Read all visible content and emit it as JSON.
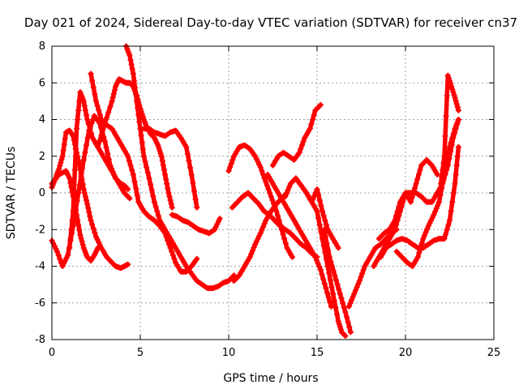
{
  "chart_data": {
    "type": "scatter",
    "title": "Day 021 of 2024, Sidereal Day-to-day VTEC variation (SDTVAR) for receiver cn37",
    "xlabel": "GPS time / hours",
    "ylabel": "SDTVAR / TECUs",
    "xlim": [
      0,
      25
    ],
    "ylim": [
      -8,
      8
    ],
    "xticks": [
      0,
      5,
      10,
      15,
      20,
      25
    ],
    "yticks": [
      -8,
      -6,
      -4,
      -2,
      0,
      2,
      4,
      6,
      8
    ],
    "grid": true,
    "marker": "+",
    "color": "#ff0000",
    "series": [
      {
        "x": [
          0,
          0.2,
          0.4,
          0.6,
          0.8,
          1.0,
          1.2,
          1.4,
          1.6,
          1.8,
          2.0,
          2.2,
          2.5,
          2.8,
          3.1,
          3.4,
          3.6,
          3.9,
          4.1,
          4.3
        ],
        "y": [
          0.3,
          0.8,
          1.3,
          2.0,
          3.3,
          3.4,
          3.1,
          2.2,
          1.3,
          0.2,
          -0.6,
          -1.5,
          -2.4,
          -3.0,
          -3.5,
          -3.8,
          -4.0,
          -4.1,
          -4.0,
          -3.9
        ]
      },
      {
        "x": [
          0,
          0.3,
          0.6,
          0.9,
          1.2,
          1.5,
          1.8,
          2.1,
          2.4,
          2.7,
          3.0,
          3.3,
          3.6,
          3.9,
          4.1,
          4.3
        ],
        "y": [
          -2.6,
          -3.2,
          -4.0,
          -3.4,
          -1.8,
          0.0,
          1.8,
          3.4,
          4.2,
          3.8,
          2.8,
          1.5,
          0.8,
          0.5,
          0.4,
          0.2
        ]
      },
      {
        "x": [
          0,
          0.4,
          0.8,
          1.0,
          1.2,
          1.4,
          1.6,
          1.8,
          2.0,
          2.2,
          2.4,
          2.6
        ],
        "y": [
          0.5,
          1.0,
          1.2,
          0.8,
          -0.2,
          -1.2,
          -2.3,
          -3.0,
          -3.5,
          -3.7,
          -3.4,
          -3.0
        ]
      },
      {
        "x": [
          1.0,
          1.2,
          1.4,
          1.6,
          1.8,
          2.0,
          2.3,
          2.6,
          2.9,
          3.2,
          3.5,
          3.8,
          4.1,
          4.4
        ],
        "y": [
          -3.0,
          -1.0,
          3.5,
          5.5,
          5.0,
          4.0,
          3.0,
          2.5,
          2.0,
          1.5,
          1.0,
          0.5,
          0.0,
          -0.3
        ]
      },
      {
        "x": [
          2.2,
          2.5,
          2.8,
          3.1,
          3.4,
          3.7,
          4.0,
          4.3,
          4.6,
          4.9,
          5.2,
          5.5,
          5.8,
          6.1,
          6.4,
          6.7,
          7.0,
          7.3,
          7.6,
          7.9,
          8.2
        ],
        "y": [
          6.5,
          5.0,
          4.0,
          3.7,
          3.5,
          3.0,
          2.5,
          2.0,
          1.0,
          -0.5,
          -1.0,
          -1.3,
          -1.5,
          -1.8,
          -2.2,
          -3.0,
          -3.8,
          -4.3,
          -4.3,
          -4.0,
          -3.6
        ]
      },
      {
        "x": [
          2.6,
          3.0,
          3.4,
          3.6,
          3.8,
          4.0,
          4.2,
          4.4,
          4.6,
          4.8,
          5.0,
          5.2,
          5.4,
          5.6,
          5.8,
          6.0,
          6.2,
          6.4,
          6.6,
          6.8
        ],
        "y": [
          2.5,
          3.8,
          5.0,
          5.8,
          6.2,
          6.1,
          6.0,
          6.0,
          5.8,
          5.3,
          4.6,
          4.0,
          3.5,
          3.2,
          3.0,
          2.6,
          2.0,
          1.0,
          0.0,
          -0.8
        ]
      },
      {
        "x": [
          4.2,
          4.4,
          4.6,
          4.8,
          5.0,
          5.2,
          5.5,
          5.8,
          6.1,
          6.4,
          6.7,
          7.0,
          7.3,
          7.6,
          7.9,
          8.2,
          8.5,
          8.8,
          9.1,
          9.4,
          9.7,
          10.0,
          10.3
        ],
        "y": [
          8.0,
          7.5,
          6.5,
          5.0,
          3.5,
          2.0,
          0.8,
          -0.5,
          -1.5,
          -2.0,
          -2.5,
          -3.0,
          -3.5,
          -4.0,
          -4.4,
          -4.8,
          -5.0,
          -5.2,
          -5.2,
          -5.1,
          -4.9,
          -4.8,
          -4.5
        ]
      },
      {
        "x": [
          5.2,
          5.5,
          5.8,
          6.1,
          6.4,
          6.7,
          7.0,
          7.3,
          7.6,
          7.9,
          8.2
        ],
        "y": [
          3.5,
          3.5,
          3.3,
          3.2,
          3.1,
          3.3,
          3.4,
          3.0,
          2.5,
          1.0,
          -0.8
        ]
      },
      {
        "x": [
          6.8,
          7.1,
          7.4,
          7.7,
          8.0,
          8.3,
          8.6,
          8.9,
          9.2,
          9.5
        ],
        "y": [
          -1.2,
          -1.3,
          -1.5,
          -1.6,
          -1.8,
          -2.0,
          -2.1,
          -2.2,
          -2.0,
          -1.4
        ]
      },
      {
        "x": [
          10.0,
          10.3,
          10.6,
          10.9,
          11.2,
          11.5,
          11.8,
          12.1,
          12.4,
          12.7,
          13.0,
          13.3,
          13.6
        ],
        "y": [
          1.2,
          2.0,
          2.5,
          2.6,
          2.4,
          2.0,
          1.4,
          0.6,
          -0.2,
          -1.0,
          -2.0,
          -3.0,
          -3.5
        ]
      },
      {
        "x": [
          10.2,
          10.5,
          10.8,
          11.1,
          11.4,
          11.7,
          12.0,
          12.3,
          12.6,
          12.9,
          13.2,
          13.5,
          13.8,
          14.1,
          14.4,
          14.7,
          15.0
        ],
        "y": [
          -0.8,
          -0.5,
          -0.2,
          0.0,
          -0.3,
          -0.6,
          -1.0,
          -1.2,
          -1.5,
          -1.8,
          -2.0,
          -2.2,
          -2.5,
          -2.8,
          -3.0,
          -3.3,
          -3.5
        ]
      },
      {
        "x": [
          10.3,
          10.6,
          10.9,
          11.2,
          11.5,
          11.8,
          12.1,
          12.4,
          12.7,
          13.0,
          13.3
        ],
        "y": [
          -4.8,
          -4.5,
          -4.0,
          -3.5,
          -2.8,
          -2.2,
          -1.5,
          -1.0,
          -0.6,
          -0.3,
          0.0
        ]
      },
      {
        "x": [
          12.5,
          12.8,
          13.1,
          13.4,
          13.7,
          14.0,
          14.3,
          14.6,
          14.9,
          15.2
        ],
        "y": [
          1.5,
          2.0,
          2.2,
          2.0,
          1.8,
          2.2,
          3.0,
          3.5,
          4.5,
          4.8
        ]
      },
      {
        "x": [
          12.2,
          12.5,
          12.8,
          13.1,
          13.4,
          13.7,
          14.0,
          14.3,
          14.6,
          14.9,
          15.2,
          15.5,
          15.8
        ],
        "y": [
          1.0,
          0.5,
          0.0,
          -0.5,
          -1.0,
          -1.5,
          -2.0,
          -2.5,
          -3.0,
          -3.5,
          -4.2,
          -5.2,
          -6.2
        ]
      },
      {
        "x": [
          13.2,
          13.5,
          13.8,
          14.1,
          14.4,
          14.7,
          15.0,
          15.3,
          15.6,
          15.9,
          16.2,
          16.4,
          16.6
        ],
        "y": [
          -0.2,
          0.5,
          0.8,
          0.4,
          0.0,
          -0.5,
          -1.0,
          -2.5,
          -4.0,
          -5.5,
          -7.0,
          -7.6,
          -7.8
        ]
      },
      {
        "x": [
          14.4,
          14.7,
          15.0,
          15.3,
          15.6,
          15.9,
          16.2
        ],
        "y": [
          0.0,
          -0.5,
          0.2,
          -1.0,
          -2.0,
          -2.5,
          -3.0
        ]
      },
      {
        "x": [
          15.4,
          15.7,
          16.0,
          16.3,
          16.6,
          16.9
        ],
        "y": [
          -2.0,
          -3.5,
          -4.5,
          -5.5,
          -6.5,
          -7.6
        ]
      },
      {
        "x": [
          16.8,
          17.1,
          17.4,
          17.7,
          18.0,
          18.3,
          18.6,
          18.9,
          19.2,
          19.5
        ],
        "y": [
          -6.2,
          -5.5,
          -4.8,
          -4.0,
          -3.5,
          -3.0,
          -2.8,
          -2.5,
          -2.2,
          -2.0
        ]
      },
      {
        "x": [
          18.2,
          18.5,
          18.8,
          19.1,
          19.4,
          19.7,
          20.0,
          20.3,
          20.6,
          20.9,
          21.2,
          21.5,
          21.8
        ],
        "y": [
          -4.0,
          -3.5,
          -3.0,
          -2.5,
          -2.0,
          -1.0,
          0.0,
          -0.5,
          0.5,
          1.5,
          1.8,
          1.5,
          1.0
        ]
      },
      {
        "x": [
          18.5,
          18.8,
          19.1,
          19.4,
          19.7,
          20.0,
          20.3,
          20.6,
          20.9,
          21.2,
          21.5,
          21.8,
          22.1,
          22.4,
          22.7,
          23.0
        ],
        "y": [
          -2.5,
          -2.2,
          -2.0,
          -1.5,
          -0.5,
          0.0,
          0.0,
          0.0,
          -0.2,
          -0.5,
          -0.5,
          0.0,
          0.5,
          1.5,
          3.0,
          4.0
        ]
      },
      {
        "x": [
          18.6,
          18.9,
          19.2,
          19.5,
          19.8,
          20.1,
          20.4,
          20.7,
          21.0,
          21.3,
          21.6,
          21.9,
          22.2,
          22.5,
          22.8,
          23.0
        ],
        "y": [
          -3.5,
          -3.0,
          -2.8,
          -2.6,
          -2.5,
          -2.6,
          -2.8,
          -3.0,
          -3.0,
          -2.8,
          -2.6,
          -2.5,
          -2.5,
          -1.5,
          0.5,
          2.5
        ]
      },
      {
        "x": [
          19.5,
          19.8,
          20.1,
          20.4,
          20.7,
          21.0,
          21.3,
          21.6,
          21.9,
          22.2,
          22.5,
          22.8,
          23.0
        ],
        "y": [
          -3.2,
          -3.5,
          -3.8,
          -4.0,
          -3.5,
          -2.5,
          -1.8,
          -1.2,
          -0.5,
          1.0,
          2.5,
          3.5,
          4.0
        ]
      },
      {
        "x": [
          22.0,
          22.2,
          22.4,
          22.6,
          22.8,
          23.0
        ],
        "y": [
          0.5,
          2.0,
          6.4,
          5.8,
          5.2,
          4.5
        ]
      }
    ]
  }
}
